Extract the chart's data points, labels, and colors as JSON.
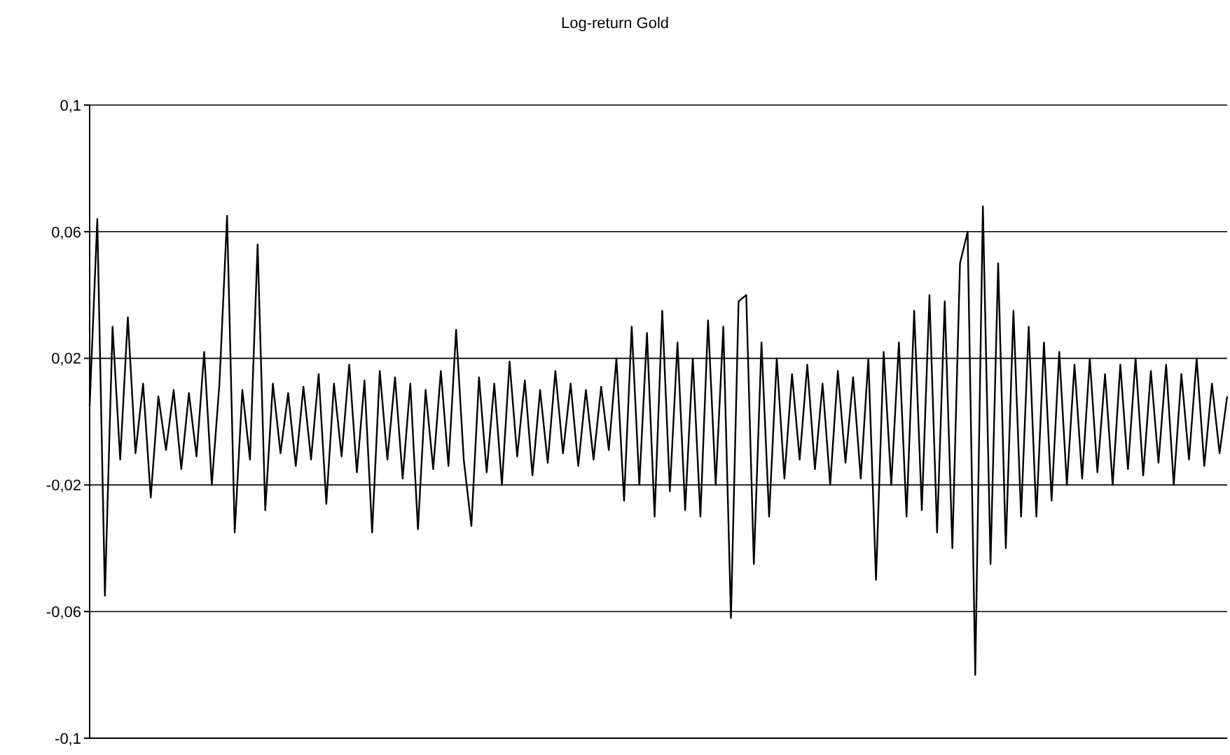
{
  "chart_data": {
    "type": "line",
    "title": "Log-return Gold",
    "categories": [
      null,
      null,
      null,
      null,
      null,
      null,
      null,
      null,
      null,
      null,
      null,
      null,
      null,
      null,
      null,
      null,
      null,
      null,
      null,
      null,
      null,
      null,
      null,
      null,
      null,
      null,
      null,
      null,
      null,
      null,
      null,
      null,
      null,
      null,
      null,
      null,
      null,
      null,
      null,
      null,
      null,
      null,
      null,
      null,
      null,
      null,
      null,
      null,
      null,
      null,
      null,
      null,
      null,
      null,
      null,
      null,
      null,
      null,
      null,
      null,
      null,
      null,
      null,
      null,
      null,
      null,
      null,
      null,
      null,
      null,
      null,
      null,
      null,
      null,
      null,
      null,
      null,
      null,
      null,
      null,
      null,
      null,
      null,
      null,
      null,
      null,
      null,
      null,
      null,
      null,
      null,
      null,
      null,
      null,
      null,
      null,
      null,
      null,
      null,
      null,
      null,
      null,
      null,
      null,
      null,
      null,
      null,
      null,
      null,
      null,
      null,
      null,
      null,
      null,
      null,
      null,
      null,
      null,
      null,
      null,
      null,
      null,
      null,
      null,
      null,
      null,
      null,
      null,
      null,
      null,
      null,
      null,
      null,
      null,
      null,
      null,
      null,
      null,
      null,
      null,
      null,
      null,
      null,
      null,
      null,
      null,
      null,
      null,
      null,
      null
    ],
    "series": [
      {
        "color": "#000000",
        "values": [
          0.005,
          0.064,
          -0.055,
          0.03,
          -0.012,
          0.033,
          -0.01,
          0.012,
          -0.024,
          0.008,
          -0.009,
          0.01,
          -0.015,
          0.009,
          -0.011,
          0.022,
          -0.02,
          0.012,
          0.065,
          -0.035,
          0.01,
          -0.012,
          0.056,
          -0.028,
          0.012,
          -0.01,
          0.009,
          -0.014,
          0.011,
          -0.012,
          0.015,
          -0.026,
          0.012,
          -0.011,
          0.018,
          -0.016,
          0.013,
          -0.035,
          0.016,
          -0.012,
          0.014,
          -0.018,
          0.012,
          -0.034,
          0.01,
          -0.015,
          0.016,
          -0.014,
          0.029,
          -0.012,
          -0.033,
          0.014,
          -0.016,
          0.012,
          -0.02,
          0.019,
          -0.011,
          0.013,
          -0.017,
          0.01,
          -0.013,
          0.016,
          -0.01,
          0.012,
          -0.014,
          0.01,
          -0.012,
          0.011,
          -0.009,
          0.02,
          -0.025,
          0.03,
          -0.02,
          0.028,
          -0.03,
          0.035,
          -0.022,
          0.025,
          -0.028,
          0.02,
          -0.03,
          0.032,
          -0.02,
          0.03,
          -0.062,
          0.038,
          0.04,
          -0.045,
          0.025,
          -0.03,
          0.02,
          -0.018,
          0.015,
          -0.012,
          0.018,
          -0.015,
          0.012,
          -0.02,
          0.016,
          -0.013,
          0.014,
          -0.018,
          0.02,
          -0.05,
          0.022,
          -0.02,
          0.025,
          -0.03,
          0.035,
          -0.028,
          0.04,
          -0.035,
          0.038,
          -0.04,
          0.05,
          0.06,
          -0.08,
          0.068,
          -0.045,
          0.05,
          -0.04,
          0.035,
          -0.03,
          0.03,
          -0.03,
          0.025,
          -0.025,
          0.022,
          -0.02,
          0.018,
          -0.018,
          0.02,
          -0.016,
          0.015,
          -0.02,
          0.018,
          -0.015,
          0.02,
          -0.017,
          0.016,
          -0.013,
          0.018,
          -0.02,
          0.015,
          -0.012,
          0.02,
          -0.014,
          0.012,
          -0.01,
          0.008
        ]
      }
    ],
    "ylim": [
      -0.1,
      0.1
    ],
    "yticks": [
      {
        "value": -0.1,
        "label": "-0,1"
      },
      {
        "value": -0.06,
        "label": "-0,06"
      },
      {
        "value": -0.02,
        "label": "-0,02"
      },
      {
        "value": 0.02,
        "label": "0,02"
      },
      {
        "value": 0.06,
        "label": "0,06"
      },
      {
        "value": 0.1,
        "label": "0,1"
      }
    ],
    "grid": "y",
    "tick_labels": "y",
    "marker": "none",
    "line_style": "solid"
  }
}
